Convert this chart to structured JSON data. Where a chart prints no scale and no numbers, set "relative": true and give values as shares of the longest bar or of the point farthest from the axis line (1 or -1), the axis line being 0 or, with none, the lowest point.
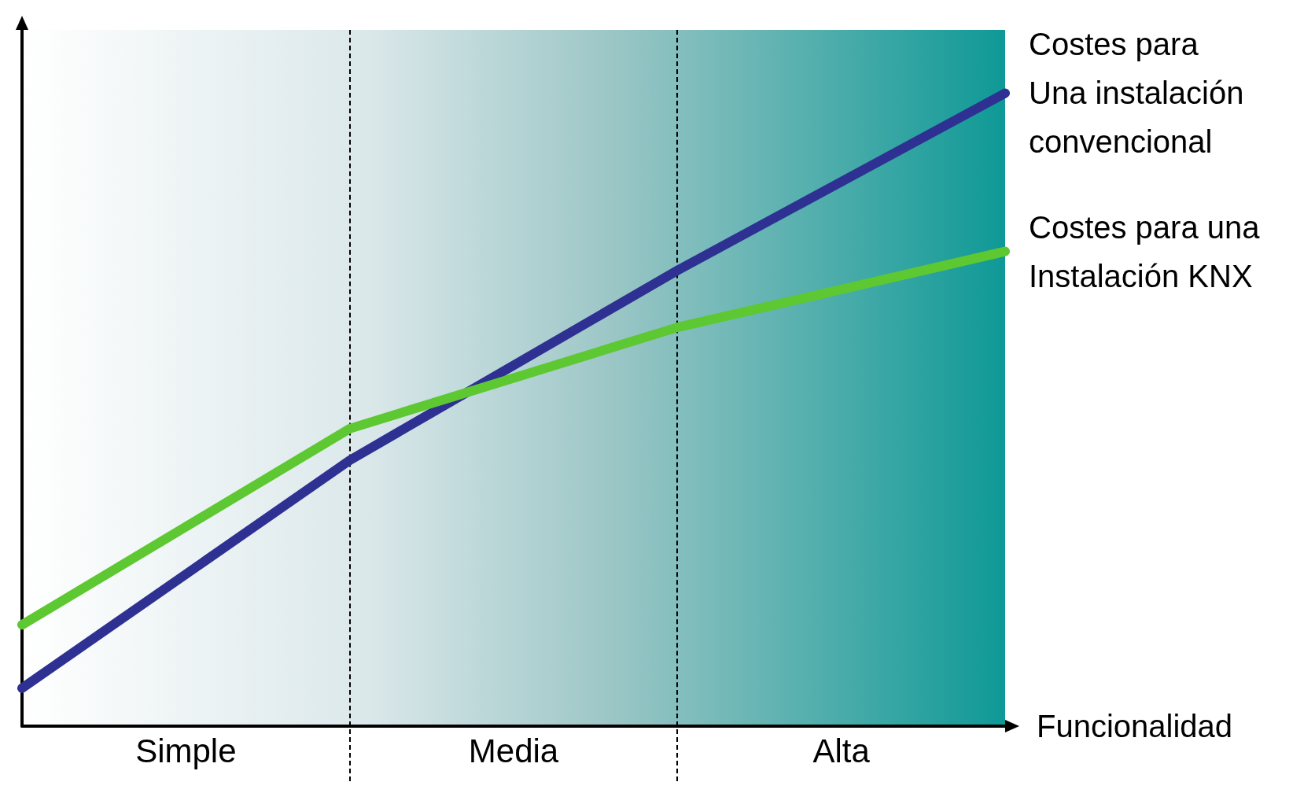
{
  "chart_data": {
    "type": "line",
    "relative": true,
    "xlabel": "Funcionalidad",
    "categories": [
      null,
      null,
      null,
      null
    ],
    "grid": false,
    "legend": false,
    "line_style": "solid",
    "series": [
      {
        "name": "Costes para\nUna instalación\nconvencional",
        "color": "#2e3192",
        "values": [
          0.06,
          0.42,
          0.72,
          1.0
        ]
      },
      {
        "name": "Costes para una\nInstalación KNX",
        "color": "#5dc831",
        "values": [
          0.16,
          0.47,
          0.63,
          0.75
        ]
      }
    ],
    "annotations": [
      "Simple",
      "Media",
      "Alta"
    ]
  }
}
